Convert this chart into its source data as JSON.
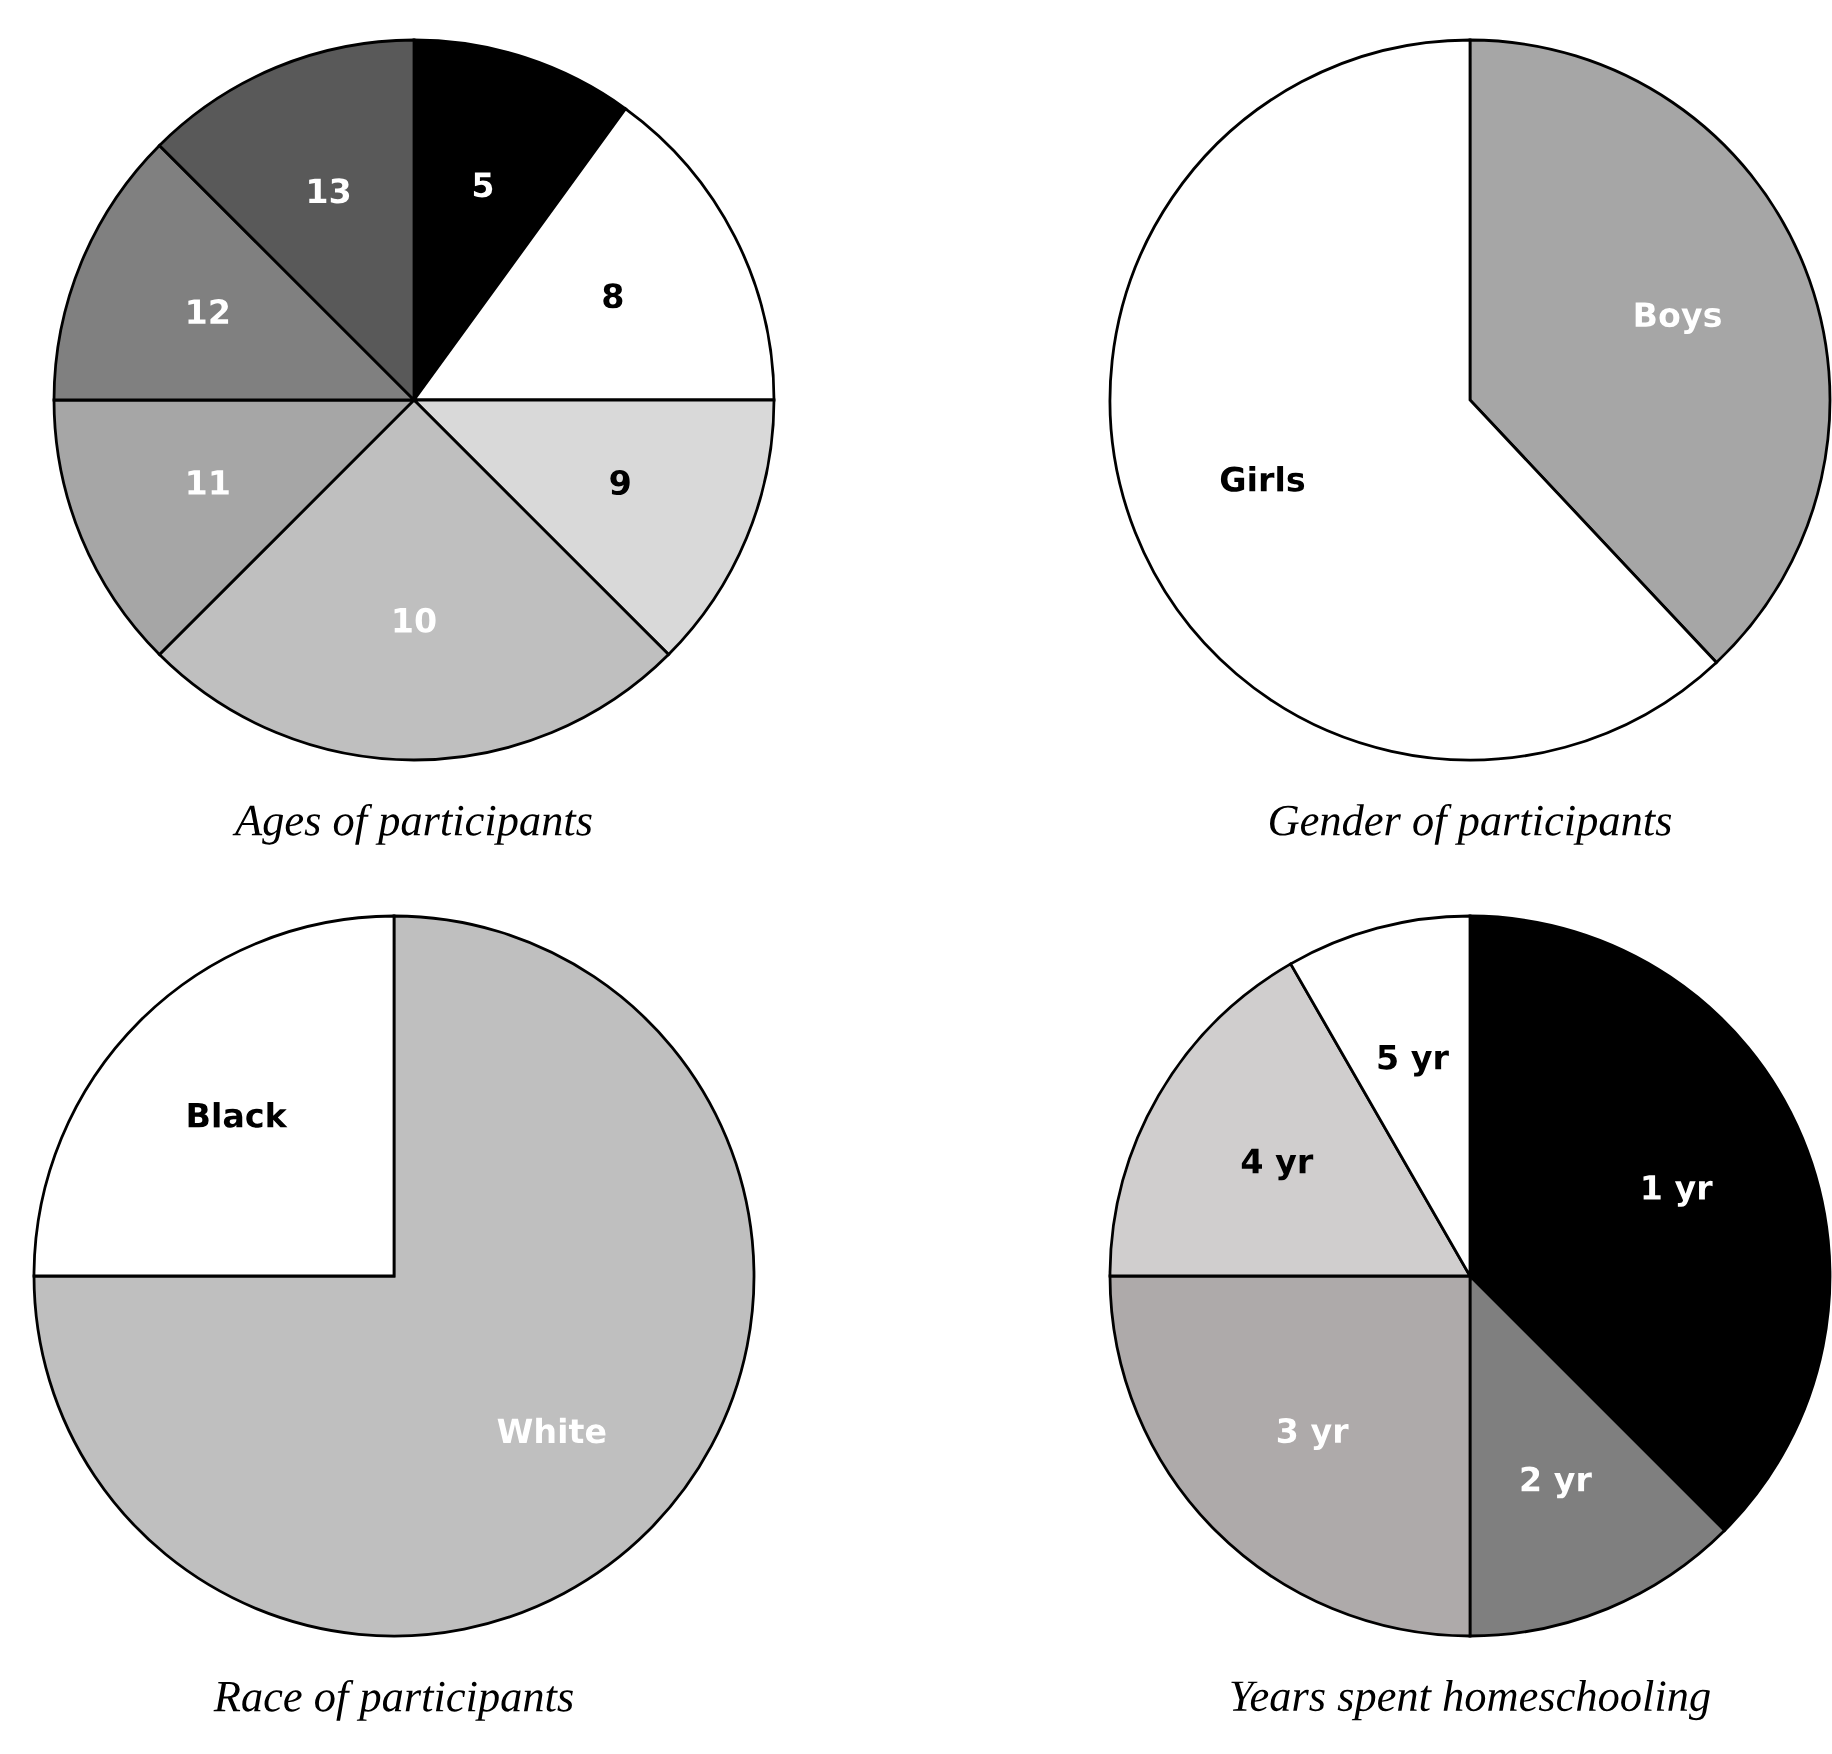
{
  "chart_data": [
    {
      "type": "pie",
      "title": "Ages of participants",
      "categories": [
        "5",
        "8",
        "9",
        "10",
        "11",
        "12",
        "13"
      ],
      "values": [
        10,
        15,
        12.5,
        25,
        12.5,
        12.5,
        12.5
      ],
      "colors": [
        "#000000",
        "#ffffff",
        "#d9d9d9",
        "#bfbfbf",
        "#a6a6a6",
        "#808080",
        "#595959"
      ]
    },
    {
      "type": "pie",
      "title": "Gender of participants",
      "categories": [
        "Boys",
        "Girls"
      ],
      "values": [
        38,
        62
      ],
      "colors": [
        "#a6a6a6",
        "#ffffff"
      ]
    },
    {
      "type": "pie",
      "title": "Race of participants",
      "categories": [
        "White",
        "Black"
      ],
      "values": [
        75,
        25
      ],
      "colors": [
        "#bfbfbf",
        "#ffffff"
      ]
    },
    {
      "type": "pie",
      "title": "Years spent homeschooling",
      "categories": [
        "1 yr",
        "2 yr",
        "3 yr",
        "4 yr",
        "5 yr"
      ],
      "values": [
        37.5,
        12.5,
        25,
        16.7,
        8.3
      ],
      "colors": [
        "#000000",
        "#7f7f7f",
        "#aeaaaa",
        "#d0cece",
        "#ffffff"
      ]
    }
  ]
}
